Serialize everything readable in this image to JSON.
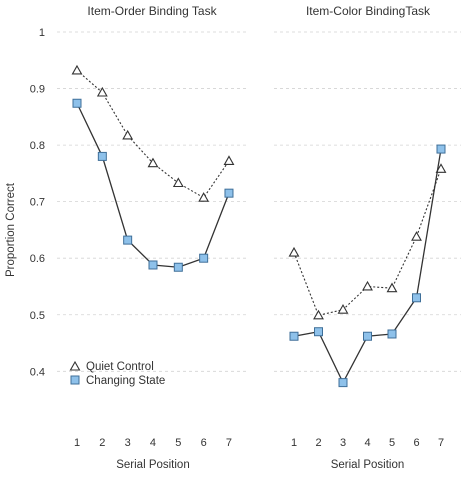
{
  "chart_data": [
    {
      "type": "line",
      "title": "Item-Order Binding Task",
      "xlabel": "Serial Position",
      "ylabel": "Proportion Correct",
      "categories": [
        1,
        2,
        3,
        4,
        5,
        6,
        7
      ],
      "ylim": [
        0.35,
        1
      ],
      "yticks": [
        "0.4",
        "0.5",
        "0.6",
        "0.7",
        "0.8",
        "0.9",
        "1"
      ],
      "grid": "dashed horizontal",
      "series": [
        {
          "name": "Quiet Control",
          "values": [
            0.932,
            0.893,
            0.817,
            0.768,
            0.733,
            0.707,
            0.772
          ],
          "color": "#333333",
          "marker": "triangle",
          "line": "dotted"
        },
        {
          "name": "Changing State",
          "values": [
            0.874,
            0.78,
            0.632,
            0.588,
            0.584,
            0.6,
            0.715
          ],
          "color": "#5b9bd5",
          "marker": "square",
          "line": "solid"
        }
      ]
    },
    {
      "type": "line",
      "title": "Item-Color BindingTask",
      "xlabel": "Serial Position",
      "categories": [
        1,
        2,
        3,
        4,
        5,
        6,
        7
      ],
      "ylim": [
        0.35,
        1
      ],
      "grid": "dashed horizontal",
      "series": [
        {
          "name": "Quiet Control",
          "values": [
            0.61,
            0.499,
            0.509,
            0.55,
            0.547,
            0.638,
            0.758
          ],
          "color": "#333333",
          "marker": "triangle",
          "line": "dotted"
        },
        {
          "name": "Changing State",
          "values": [
            0.462,
            0.47,
            0.38,
            0.462,
            0.466,
            0.53,
            0.793
          ],
          "color": "#5b9bd5",
          "marker": "square",
          "line": "solid"
        }
      ]
    }
  ],
  "legend": {
    "placement": "bottom-left of first panel",
    "items": [
      {
        "label": "Quiet Control",
        "marker": "triangle"
      },
      {
        "label": "Changing State",
        "marker": "square"
      }
    ]
  }
}
